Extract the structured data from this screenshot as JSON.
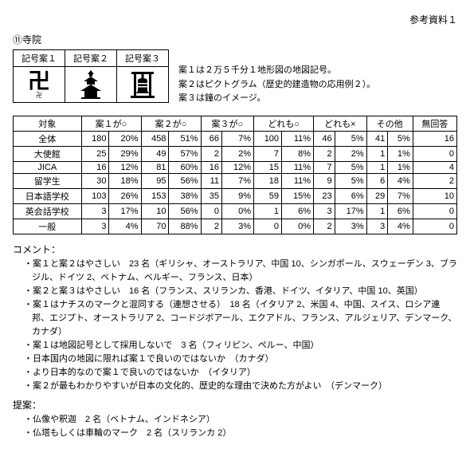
{
  "header": {
    "ref": "参考資料１",
    "section": "⑪寺院"
  },
  "iconTable": {
    "headers": [
      "記号案１",
      "記号案２",
      "記号案３"
    ],
    "captions": [
      "卍",
      "",
      ""
    ]
  },
  "descLines": [
    "案１は２万５千分１地形図の地図記号。",
    "案２はピクトグラム（歴史的建造物の応用例２）。",
    "案３は鐘のイメージ。"
  ],
  "table": {
    "headers": [
      "対象",
      "案１が○",
      "案２が○",
      "案３が○",
      "どれも○",
      "どれも×",
      "その他",
      "無回答"
    ],
    "rows": [
      {
        "label": "全体",
        "cells": [
          [
            "180",
            "20%"
          ],
          [
            "458",
            "51%"
          ],
          [
            "66",
            "7%"
          ],
          [
            "100",
            "11%"
          ],
          [
            "46",
            "5%"
          ],
          [
            "41",
            "5%"
          ],
          [
            "16"
          ]
        ]
      },
      {
        "label": "大使館",
        "cells": [
          [
            "25",
            "29%"
          ],
          [
            "49",
            "57%"
          ],
          [
            "2",
            "2%"
          ],
          [
            "7",
            "8%"
          ],
          [
            "2",
            "2%"
          ],
          [
            "1",
            "1%"
          ],
          [
            "0"
          ]
        ]
      },
      {
        "label": "JICA",
        "cells": [
          [
            "16",
            "12%"
          ],
          [
            "81",
            "60%"
          ],
          [
            "16",
            "12%"
          ],
          [
            "15",
            "11%"
          ],
          [
            "7",
            "5%"
          ],
          [
            "1",
            "1%"
          ],
          [
            "4"
          ]
        ]
      },
      {
        "label": "留学生",
        "cells": [
          [
            "30",
            "18%"
          ],
          [
            "95",
            "56%"
          ],
          [
            "11",
            "7%"
          ],
          [
            "18",
            "11%"
          ],
          [
            "9",
            "5%"
          ],
          [
            "6",
            "4%"
          ],
          [
            "2"
          ]
        ]
      },
      {
        "label": "日本語学校",
        "cells": [
          [
            "103",
            "26%"
          ],
          [
            "153",
            "38%"
          ],
          [
            "35",
            "9%"
          ],
          [
            "59",
            "15%"
          ],
          [
            "23",
            "6%"
          ],
          [
            "29",
            "7%"
          ],
          [
            "10"
          ]
        ]
      },
      {
        "label": "英会話学校",
        "cells": [
          [
            "3",
            "17%"
          ],
          [
            "10",
            "56%"
          ],
          [
            "0",
            "0%"
          ],
          [
            "1",
            "6%"
          ],
          [
            "3",
            "17%"
          ],
          [
            "1",
            "6%"
          ],
          [
            "0"
          ]
        ]
      },
      {
        "label": "一般",
        "cells": [
          [
            "3",
            "4%"
          ],
          [
            "70",
            "88%"
          ],
          [
            "2",
            "3%"
          ],
          [
            "0",
            "0%"
          ],
          [
            "2",
            "3%"
          ],
          [
            "3",
            "4%"
          ],
          [
            "0"
          ]
        ]
      }
    ]
  },
  "commentsHeading": "コメント：",
  "comments": [
    "案１と案２はやさしい　23 名（ギリシャ、オーストラリア、中国 10、シンガポール、スウェーデン 3、ブラジル、ドイツ 2、ベトナム、ベルギー、フランス、日本）",
    "案２と案３はやさしい　16 名（フランス、スリランカ、香港、ドイツ、イタリア、中国 10、英国）",
    "案１はナチスのマークと混同する（連想させる）　18 名（イタリア 2、米国 4、中国、スイス、ロシア連邦、エジプト、オーストラリア 2、コードジボアール、エクアドル、フランス、アルジェリア、デンマーク、カナダ）",
    "案１は地図記号として採用しないで　3 名（フィリピン、ペルー、中国）",
    "日本国内の地図に限れば案１で良いのではないか　（カナダ）",
    "より日本的なので案１で良いのではないか　（イタリア）",
    "案２が最もわかりやすいが日本の文化的、歴史的な理由で決めた方がよい　（デンマーク）"
  ],
  "proposalHeading": "提案：",
  "proposals": [
    "仏像や釈迦　2 名（ベトナム、インドネシア）",
    "仏塔もしくは車輪のマーク　2 名（スリランカ 2）"
  ]
}
